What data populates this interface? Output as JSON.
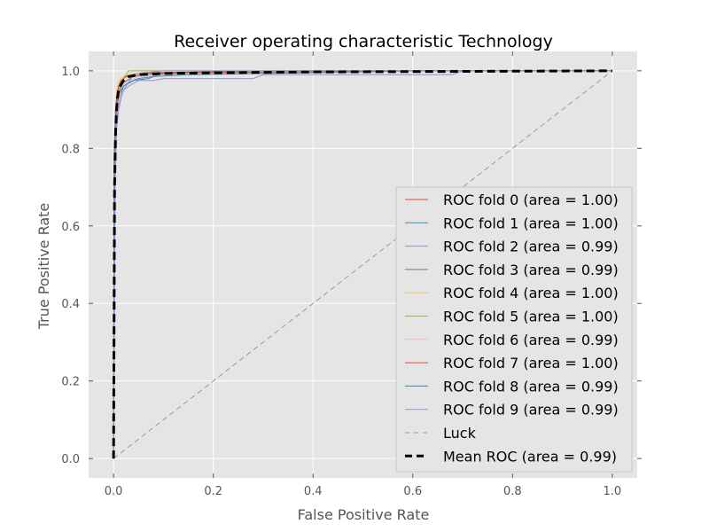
{
  "chart_data": {
    "type": "line",
    "title": "Receiver operating characteristic Technology",
    "xlabel": "False Positive Rate",
    "ylabel": "True Positive Rate",
    "xlim": [
      -0.05,
      1.05
    ],
    "ylim": [
      -0.05,
      1.05
    ],
    "xticks": [
      0.0,
      0.2,
      0.4,
      0.6,
      0.8,
      1.0
    ],
    "yticks": [
      0.0,
      0.2,
      0.4,
      0.6,
      0.8,
      1.0
    ],
    "xtick_labels": [
      "0.0",
      "0.2",
      "0.4",
      "0.6",
      "0.8",
      "1.0"
    ],
    "ytick_labels": [
      "0.0",
      "0.2",
      "0.4",
      "0.6",
      "0.8",
      "1.0"
    ],
    "grid": true,
    "legend_position": "lower-right",
    "background": "#e5e5e5",
    "series": [
      {
        "name": "ROC fold 0 (area = 1.00)",
        "color": "#e24a33",
        "style": "solid",
        "x": [
          0,
          0.002,
          0.004,
          0.006,
          0.01,
          0.02,
          0.03,
          0.05,
          0.1,
          0.3,
          0.52,
          0.6,
          1.0
        ],
        "y": [
          0,
          0.6,
          0.85,
          0.9,
          0.96,
          0.98,
          0.99,
          0.993,
          0.995,
          0.995,
          0.998,
          1.0,
          1.0
        ]
      },
      {
        "name": "ROC fold 1 (area = 1.00)",
        "color": "#348abd",
        "style": "solid",
        "x": [
          0,
          0.001,
          0.004,
          0.008,
          0.012,
          0.02,
          0.04,
          0.07,
          0.09,
          0.15,
          0.4,
          1.0
        ],
        "y": [
          0,
          0.75,
          0.85,
          0.9,
          0.93,
          0.96,
          0.975,
          0.98,
          0.99,
          0.995,
          1.0,
          1.0
        ]
      },
      {
        "name": "ROC fold 2 (area = 0.99)",
        "color": "#988ed5",
        "style": "solid",
        "x": [
          0,
          0.003,
          0.006,
          0.01,
          0.015,
          0.02,
          0.03,
          0.05,
          0.08,
          0.1,
          0.28,
          0.3,
          0.68,
          0.7,
          1.0
        ],
        "y": [
          0,
          0.7,
          0.85,
          0.9,
          0.93,
          0.95,
          0.96,
          0.975,
          0.975,
          0.98,
          0.98,
          0.99,
          0.99,
          1.0,
          1.0
        ]
      },
      {
        "name": "ROC fold 3 (area = 0.99)",
        "color": "#777777",
        "style": "solid",
        "x": [
          0,
          0.002,
          0.004,
          0.008,
          0.012,
          0.02,
          0.04,
          0.06,
          0.1,
          0.2,
          0.45,
          0.6,
          1.0
        ],
        "y": [
          0,
          0.7,
          0.85,
          0.91,
          0.95,
          0.97,
          0.985,
          0.99,
          0.993,
          0.996,
          0.998,
          1.0,
          1.0
        ]
      },
      {
        "name": "ROC fold 4 (area = 1.00)",
        "color": "#fbc15e",
        "style": "solid",
        "x": [
          0,
          0.002,
          0.004,
          0.006,
          0.01,
          0.015,
          0.02,
          0.03,
          0.06,
          0.2,
          0.5,
          1.0
        ],
        "y": [
          0,
          0.8,
          0.9,
          0.95,
          0.97,
          0.98,
          0.985,
          0.99,
          0.995,
          0.998,
          1.0,
          1.0
        ]
      },
      {
        "name": "ROC fold 5 (area = 1.00)",
        "color": "#8eba42",
        "style": "solid",
        "x": [
          0,
          0.002,
          0.004,
          0.008,
          0.015,
          0.02,
          0.03,
          0.05,
          1.0
        ],
        "y": [
          0,
          0.75,
          0.88,
          0.94,
          0.97,
          0.98,
          1.0,
          1.0,
          1.0
        ]
      },
      {
        "name": "ROC fold 6 (area = 0.99)",
        "color": "#ffb5b8",
        "style": "solid",
        "x": [
          0,
          0.003,
          0.006,
          0.01,
          0.015,
          0.02,
          0.03,
          0.05,
          0.1,
          0.2,
          0.5,
          0.65,
          1.0
        ],
        "y": [
          0,
          0.7,
          0.85,
          0.92,
          0.95,
          0.965,
          0.975,
          0.985,
          0.99,
          0.993,
          0.997,
          1.0,
          1.0
        ]
      },
      {
        "name": "ROC fold 7 (area = 1.00)",
        "color": "#e24a33",
        "style": "solid",
        "x": [
          0,
          0.002,
          0.004,
          0.007,
          0.01,
          0.015,
          0.025,
          0.04,
          0.08,
          0.3,
          1.0
        ],
        "y": [
          0,
          0.78,
          0.9,
          0.94,
          0.96,
          0.975,
          0.985,
          0.99,
          0.995,
          1.0,
          1.0
        ]
      },
      {
        "name": "ROC fold 8 (area = 0.99)",
        "color": "#348abd",
        "style": "solid",
        "x": [
          0,
          0.001,
          0.003,
          0.006,
          0.01,
          0.02,
          0.03,
          0.05,
          0.08,
          0.15,
          0.4,
          0.6,
          1.0
        ],
        "y": [
          0,
          0.78,
          0.86,
          0.91,
          0.94,
          0.96,
          0.97,
          0.98,
          0.985,
          0.99,
          0.995,
          1.0,
          1.0
        ]
      },
      {
        "name": "ROC fold 9 (area = 0.99)",
        "color": "#988ed5",
        "style": "solid",
        "x": [
          0,
          0.003,
          0.006,
          0.01,
          0.015,
          0.02,
          0.03,
          0.04,
          0.06,
          0.1,
          0.2,
          0.5,
          0.7,
          1.0
        ],
        "y": [
          0,
          0.7,
          0.85,
          0.9,
          0.93,
          0.95,
          0.97,
          0.99,
          0.995,
          1.0,
          1.0,
          1.0,
          1.0,
          1.0
        ]
      },
      {
        "name": "Luck",
        "color": "#999999",
        "style": "dashed-thin",
        "x": [
          0,
          1
        ],
        "y": [
          0,
          1
        ]
      },
      {
        "name": "Mean ROC (area = 0.99)",
        "color": "#000000",
        "style": "dashed-thick",
        "x": [
          0,
          0.002,
          0.004,
          0.006,
          0.008,
          0.01,
          0.015,
          0.02,
          0.03,
          0.05,
          0.1,
          0.2,
          0.4,
          0.6,
          0.8,
          1.0
        ],
        "y": [
          0,
          0.7,
          0.84,
          0.9,
          0.93,
          0.95,
          0.965,
          0.975,
          0.985,
          0.99,
          0.993,
          0.995,
          0.997,
          0.998,
          0.999,
          1.0
        ]
      }
    ]
  }
}
